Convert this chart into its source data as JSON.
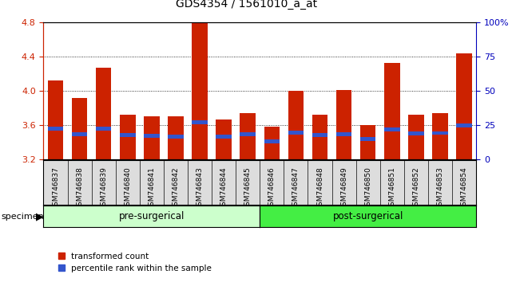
{
  "title": "GDS4354 / 1561010_a_at",
  "samples": [
    "GSM746837",
    "GSM746838",
    "GSM746839",
    "GSM746840",
    "GSM746841",
    "GSM746842",
    "GSM746843",
    "GSM746844",
    "GSM746845",
    "GSM746846",
    "GSM746847",
    "GSM746848",
    "GSM746849",
    "GSM746850",
    "GSM746851",
    "GSM746852",
    "GSM746853",
    "GSM746854"
  ],
  "transformed_count": [
    4.12,
    3.92,
    4.27,
    3.72,
    3.7,
    3.7,
    4.79,
    3.67,
    3.74,
    3.58,
    4.0,
    3.72,
    4.01,
    3.6,
    4.33,
    3.72,
    3.74,
    4.44
  ],
  "percentile_bottom": [
    3.535,
    3.475,
    3.535,
    3.46,
    3.455,
    3.445,
    3.61,
    3.44,
    3.475,
    3.39,
    3.49,
    3.465,
    3.475,
    3.415,
    3.53,
    3.48,
    3.485,
    3.57
  ],
  "percentile_height": [
    0.045,
    0.045,
    0.045,
    0.045,
    0.045,
    0.045,
    0.045,
    0.045,
    0.045,
    0.045,
    0.045,
    0.045,
    0.045,
    0.045,
    0.045,
    0.045,
    0.045,
    0.045
  ],
  "ylim": [
    3.2,
    4.8
  ],
  "yticks_left": [
    3.2,
    3.6,
    4.0,
    4.4,
    4.8
  ],
  "yticks_right": [
    0,
    25,
    50,
    75,
    100
  ],
  "ytick_right_labels": [
    "0",
    "25",
    "50",
    "75",
    "100%"
  ],
  "bar_color": "#cc2200",
  "blue_color": "#3355cc",
  "pre_surgical_count": 9,
  "post_surgical_count": 9,
  "group_bg_light": "#ccffcc",
  "group_bg_dark": "#44ee44",
  "legend_red": "transformed count",
  "legend_blue": "percentile rank within the sample",
  "tick_label_color_left": "#cc2200",
  "tick_label_color_right": "#0000bb",
  "title_fontsize": 10,
  "bar_width": 0.65,
  "xtick_bg": "#dddddd",
  "pre_label": "pre-surgerical",
  "post_label": "post-surgerical"
}
